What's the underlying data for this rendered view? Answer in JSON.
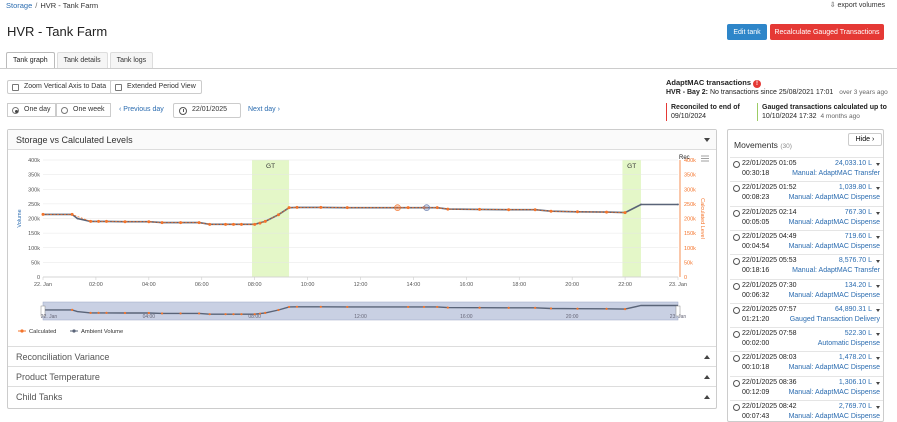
{
  "breadcrumb": {
    "root": "Storage",
    "separator": "/",
    "current": "HVR - Tank Farm"
  },
  "export_label": "export volumes",
  "page_title": "HVR - Tank Farm",
  "buttons": {
    "edit": "Edit tank",
    "recalc": "Recalculate Gauged Transactions"
  },
  "tabs": [
    {
      "label": "Tank graph"
    },
    {
      "label": "Tank details"
    },
    {
      "label": "Tank logs"
    }
  ],
  "options": {
    "zoom": "Zoom Vertical Axis to Data",
    "extended": "Extended Period View"
  },
  "period": {
    "one_day": "One day",
    "one_week": "One week",
    "prev": "Previous day",
    "date": "22/01/2025",
    "next": "Next day"
  },
  "adaptmac": {
    "title": "AdaptMAC transactions",
    "warn_icon": "!",
    "bay": "HVR - Bay 2:",
    "message": "No transactions since 25/08/2021 17:01",
    "ago": "over 3 years ago",
    "reconciled_label": "Reconciled to end of",
    "reconciled_date": "09/10/2024",
    "gauged_label": "Gauged transactions calculated up to",
    "gauged_date": "10/10/2024 17:32",
    "gauged_ago": "4 months ago",
    "recon_color": "#e53935",
    "gauged_color": "#9ccc65"
  },
  "panel": {
    "title": "Storage vs Calculated Levels",
    "sections": [
      "Reconciliation Variance",
      "Product Temperature",
      "Child Tanks"
    ]
  },
  "chart_data": {
    "type": "line",
    "title": "",
    "xlabel": "",
    "ylabel": "Volume",
    "y2label": "Calculated Level",
    "right_header": "Rec",
    "ylim": [
      0,
      400000
    ],
    "yticks": [
      "0",
      "50k",
      "100k",
      "150k",
      "200k",
      "250k",
      "300k",
      "350k",
      "400k"
    ],
    "y2ticks": [
      "0",
      "50k",
      "100k",
      "150k",
      "200k",
      "250k",
      "300k",
      "350k",
      "400k"
    ],
    "xlim": [
      0,
      24
    ],
    "xticks": [
      {
        "x": 0,
        "label": "22. Jan"
      },
      {
        "x": 2,
        "label": "02:00"
      },
      {
        "x": 4,
        "label": "04:00"
      },
      {
        "x": 6,
        "label": "06:00"
      },
      {
        "x": 8,
        "label": "08:00"
      },
      {
        "x": 10,
        "label": "10:00"
      },
      {
        "x": 12,
        "label": "12:00"
      },
      {
        "x": 14,
        "label": "14:00"
      },
      {
        "x": 16,
        "label": "16:00"
      },
      {
        "x": 18,
        "label": "18:00"
      },
      {
        "x": 20,
        "label": "20:00"
      },
      {
        "x": 22,
        "label": "22:00"
      },
      {
        "x": 24,
        "label": "23. Jan"
      }
    ],
    "navigator_ticks": [
      {
        "x": 0,
        "label": "22. Jan"
      },
      {
        "x": 4,
        "label": "04:00"
      },
      {
        "x": 8,
        "label": "08:00"
      },
      {
        "x": 12,
        "label": "12:00"
      },
      {
        "x": 16,
        "label": "16:00"
      },
      {
        "x": 20,
        "label": "20:00"
      },
      {
        "x": 24,
        "label": "23. Jan"
      }
    ],
    "bands": [
      {
        "from": 7.9,
        "to": 9.3,
        "label": "GT"
      },
      {
        "from": 21.9,
        "to": 22.6,
        "label": "GT"
      }
    ],
    "series": [
      {
        "name": "Ambient Volume",
        "color": "#5a6478",
        "x": [
          0,
          1.1,
          1.3,
          1.8,
          2.4,
          3.1,
          4.0,
          4.5,
          5.2,
          5.9,
          6.3,
          6.9,
          7.2,
          7.5,
          8.0,
          8.4,
          8.9,
          9.3,
          9.6,
          10.5,
          11.5,
          13.8,
          14.4,
          14.9,
          15.3,
          16.5,
          17.6,
          18.6,
          19.2,
          20.2,
          21.3,
          22.0,
          22.6,
          24.0
        ],
        "y": [
          214000,
          214000,
          200000,
          190000,
          190000,
          189000,
          189000,
          186000,
          186000,
          186000,
          180000,
          180000,
          180000,
          180000,
          180000,
          190000,
          213000,
          237000,
          238000,
          238000,
          237000,
          237000,
          237000,
          237000,
          232000,
          231000,
          230000,
          230000,
          225000,
          223000,
          222000,
          220000,
          248000,
          248000
        ]
      },
      {
        "name": "Calculated",
        "color": "#f4742b",
        "x": [
          0,
          1.1,
          1.8,
          2.1,
          2.4,
          3.1,
          4.0,
          4.5,
          5.2,
          5.9,
          6.3,
          6.9,
          7.2,
          7.5,
          8.0,
          8.2,
          8.4,
          8.9,
          9.3,
          9.6,
          10.5,
          11.5,
          13.8,
          14.4,
          14.9,
          15.3,
          16.5,
          17.6,
          18.6,
          19.2,
          20.2,
          21.3,
          22.0
        ],
        "y": [
          214000,
          214000,
          190000,
          190000,
          190000,
          189000,
          189000,
          186000,
          186000,
          186000,
          180000,
          180000,
          180000,
          180000,
          180000,
          184000,
          190000,
          213000,
          237000,
          238000,
          238000,
          237000,
          237000,
          237000,
          237000,
          232000,
          231000,
          230000,
          230000,
          225000,
          223000,
          222000,
          220000
        ]
      }
    ],
    "highlight_points": [
      {
        "x": 13.4,
        "y": 237000,
        "series": "Calculated"
      },
      {
        "x": 14.5,
        "y": 237000,
        "series": "Ambient Volume"
      }
    ],
    "legend": "bottom-left",
    "grid": true
  },
  "movements": {
    "title": "Movements",
    "count": "(30)",
    "hide_label": "Hide",
    "items": [
      {
        "datetime": "22/01/2025 01:05",
        "duration": "00:30:18",
        "amount": "24,033.10 L",
        "kind": "Manual: AdaptMAC Transfer"
      },
      {
        "datetime": "22/01/2025 01:52",
        "duration": "00:08:23",
        "amount": "1,039.80 L",
        "kind": "Manual: AdaptMAC Dispense"
      },
      {
        "datetime": "22/01/2025 02:14",
        "duration": "00:05:05",
        "amount": "767.30 L",
        "kind": "Manual: AdaptMAC Dispense"
      },
      {
        "datetime": "22/01/2025 04:49",
        "duration": "00:04:54",
        "amount": "719.60 L",
        "kind": "Manual: AdaptMAC Dispense"
      },
      {
        "datetime": "22/01/2025 05:53",
        "duration": "00:18:16",
        "amount": "8,576.70 L",
        "kind": "Manual: AdaptMAC Transfer"
      },
      {
        "datetime": "22/01/2025 07:30",
        "duration": "00:06:32",
        "amount": "134.20 L",
        "kind": "Manual: AdaptMAC Dispense"
      },
      {
        "datetime": "22/01/2025 07:57",
        "duration": "01:21:20",
        "amount": "64,890.31 L",
        "kind": "Gauged Transaction Delivery"
      },
      {
        "datetime": "22/01/2025 07:58",
        "duration": "00:02:00",
        "amount": "522.30 L",
        "kind": "Automatic Dispense"
      },
      {
        "datetime": "22/01/2025 08:03",
        "duration": "00:10:18",
        "amount": "1,478.20 L",
        "kind": "Manual: AdaptMAC Dispense"
      },
      {
        "datetime": "22/01/2025 08:36",
        "duration": "00:12:09",
        "amount": "1,306.10 L",
        "kind": "Manual: AdaptMAC Dispense"
      },
      {
        "datetime": "22/01/2025 08:42",
        "duration": "00:07:43",
        "amount": "2,769.70 L",
        "kind": "Manual: AdaptMAC Dispense"
      }
    ]
  }
}
